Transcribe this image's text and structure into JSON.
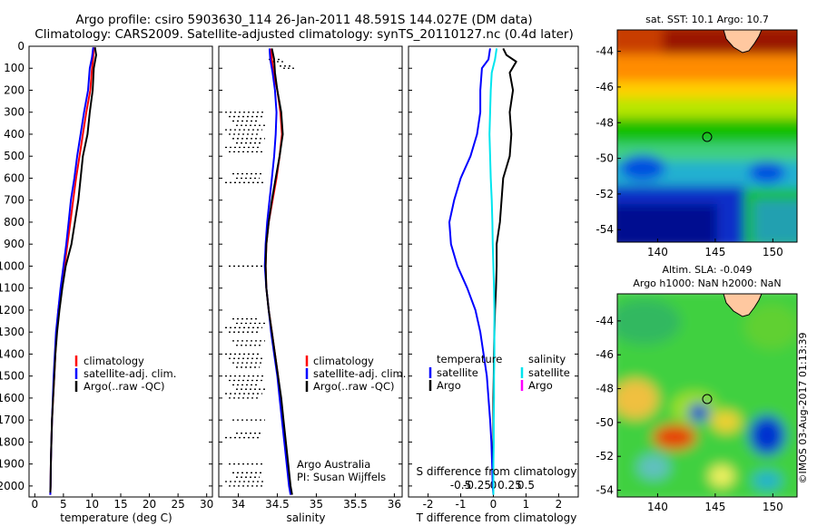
{
  "header": {
    "line1": "Argo profile: csiro 5903630_114 26-Jan-2011 48.591S 144.027E (DM data)",
    "line2": "Climatology: CARS2009. Satellite-adjusted climatology: synTS_20110127.nc (0.4d later)"
  },
  "colors": {
    "climatology": "#ff0000",
    "satellite": "#0000ff",
    "argo": "#000000",
    "salinity_satellite": "#00e5ee",
    "salinity_argo": "#ff00ff"
  },
  "chart_data": [
    {
      "type": "line",
      "panel": "temperature",
      "xlabel": "temperature (deg C)",
      "ylabel": "",
      "xlim": [
        -1,
        31
      ],
      "ylim": [
        2050,
        0
      ],
      "xticks": [
        "0",
        "5",
        "10",
        "15",
        "20",
        "25",
        "30"
      ],
      "yticks": [
        "0",
        "100",
        "200",
        "300",
        "400",
        "500",
        "600",
        "700",
        "800",
        "900",
        "1000",
        "1100",
        "1200",
        "1300",
        "1400",
        "1500",
        "1600",
        "1700",
        "1800",
        "1900",
        "2000"
      ],
      "legend": [
        "climatology",
        "satellite-adj. clim.",
        "Argo(..raw -QC)"
      ],
      "series": [
        {
          "name": "climatology",
          "color": "#ff0000",
          "values": [
            [
              10.3,
              5
            ],
            [
              10.2,
              50
            ],
            [
              10.0,
              100
            ],
            [
              9.7,
              200
            ],
            [
              9.0,
              300
            ],
            [
              8.4,
              400
            ],
            [
              7.8,
              500
            ],
            [
              7.2,
              600
            ],
            [
              6.7,
              700
            ],
            [
              6.2,
              800
            ],
            [
              5.7,
              900
            ],
            [
              5.2,
              1000
            ],
            [
              4.6,
              1100
            ],
            [
              4.1,
              1200
            ],
            [
              3.8,
              1300
            ],
            [
              3.6,
              1400
            ],
            [
              3.4,
              1500
            ],
            [
              3.2,
              1600
            ],
            [
              3.0,
              1700
            ],
            [
              2.9,
              1800
            ],
            [
              2.8,
              1900
            ],
            [
              2.75,
              2000
            ],
            [
              2.7,
              2040
            ]
          ]
        },
        {
          "name": "satellite-adj. clim.",
          "color": "#0000ff",
          "values": [
            [
              10.2,
              5
            ],
            [
              10.0,
              50
            ],
            [
              9.6,
              100
            ],
            [
              9.3,
              200
            ],
            [
              8.6,
              300
            ],
            [
              8.0,
              400
            ],
            [
              7.4,
              500
            ],
            [
              6.9,
              600
            ],
            [
              6.3,
              700
            ],
            [
              5.9,
              800
            ],
            [
              5.5,
              900
            ],
            [
              5.0,
              1000
            ],
            [
              4.5,
              1100
            ],
            [
              4.1,
              1200
            ],
            [
              3.7,
              1300
            ],
            [
              3.5,
              1400
            ],
            [
              3.3,
              1500
            ],
            [
              3.15,
              1600
            ],
            [
              3.0,
              1700
            ],
            [
              2.9,
              1800
            ],
            [
              2.8,
              1900
            ],
            [
              2.75,
              2000
            ],
            [
              2.7,
              2040
            ]
          ]
        },
        {
          "name": "Argo(..raw -QC)",
          "color": "#000000",
          "values": [
            [
              10.5,
              5
            ],
            [
              10.7,
              40
            ],
            [
              10.3,
              100
            ],
            [
              10.1,
              200
            ],
            [
              9.6,
              300
            ],
            [
              9.2,
              400
            ],
            [
              8.4,
              500
            ],
            [
              8.0,
              600
            ],
            [
              7.6,
              700
            ],
            [
              7.0,
              800
            ],
            [
              6.4,
              900
            ],
            [
              5.4,
              1000
            ],
            [
              4.8,
              1100
            ],
            [
              4.3,
              1200
            ],
            [
              3.9,
              1300
            ],
            [
              3.6,
              1400
            ],
            [
              3.4,
              1500
            ],
            [
              3.2,
              1600
            ],
            [
              3.0,
              1700
            ],
            [
              2.9,
              1800
            ],
            [
              2.8,
              1900
            ],
            [
              2.75,
              2000
            ],
            [
              2.7,
              2030
            ]
          ]
        }
      ]
    },
    {
      "type": "line",
      "panel": "salinity",
      "xlabel": "salinity",
      "xlim": [
        33.75,
        36.1
      ],
      "ylim": [
        2050,
        0
      ],
      "xticks": [
        "34",
        "34.5",
        "35",
        "35.5",
        "36"
      ],
      "legend": [
        "climatology",
        "satellite-adj. clim.",
        "Argo(..raw -QC)"
      ],
      "annotation": [
        "Argo Australia",
        "PI: Susan Wijffels"
      ],
      "series": [
        {
          "name": "climatology",
          "color": "#ff0000",
          "values": [
            [
              34.42,
              10
            ],
            [
              34.43,
              60
            ],
            [
              34.45,
              120
            ],
            [
              34.5,
              200
            ],
            [
              34.54,
              300
            ],
            [
              34.56,
              400
            ],
            [
              34.53,
              500
            ],
            [
              34.49,
              600
            ],
            [
              34.44,
              700
            ],
            [
              34.39,
              800
            ],
            [
              34.36,
              900
            ],
            [
              34.35,
              1000
            ],
            [
              34.36,
              1100
            ],
            [
              34.39,
              1200
            ],
            [
              34.43,
              1300
            ],
            [
              34.47,
              1400
            ],
            [
              34.51,
              1500
            ],
            [
              34.54,
              1600
            ],
            [
              34.57,
              1700
            ],
            [
              34.6,
              1800
            ],
            [
              34.63,
              1900
            ],
            [
              34.66,
              2000
            ],
            [
              34.68,
              2040
            ]
          ]
        },
        {
          "name": "satellite-adj. clim.",
          "color": "#0000ff",
          "values": [
            [
              34.4,
              10
            ],
            [
              34.41,
              60
            ],
            [
              34.44,
              120
            ],
            [
              34.47,
              200
            ],
            [
              34.49,
              300
            ],
            [
              34.48,
              400
            ],
            [
              34.46,
              500
            ],
            [
              34.43,
              600
            ],
            [
              34.4,
              700
            ],
            [
              34.37,
              800
            ],
            [
              34.35,
              900
            ],
            [
              34.34,
              1000
            ],
            [
              34.36,
              1100
            ],
            [
              34.39,
              1200
            ],
            [
              34.42,
              1300
            ],
            [
              34.46,
              1400
            ],
            [
              34.5,
              1500
            ],
            [
              34.53,
              1600
            ],
            [
              34.56,
              1700
            ],
            [
              34.59,
              1800
            ],
            [
              34.62,
              1900
            ],
            [
              34.65,
              2000
            ],
            [
              34.67,
              2040
            ]
          ]
        },
        {
          "name": "Argo(..raw -QC)",
          "color": "#000000",
          "values": [
            [
              34.43,
              10
            ],
            [
              34.46,
              60
            ],
            [
              34.47,
              120
            ],
            [
              34.5,
              200
            ],
            [
              34.55,
              300
            ],
            [
              34.57,
              400
            ],
            [
              34.53,
              500
            ],
            [
              34.48,
              600
            ],
            [
              34.43,
              700
            ],
            [
              34.39,
              800
            ],
            [
              34.36,
              900
            ],
            [
              34.35,
              1000
            ],
            [
              34.36,
              1100
            ],
            [
              34.39,
              1200
            ],
            [
              34.43,
              1300
            ],
            [
              34.47,
              1400
            ],
            [
              34.51,
              1500
            ],
            [
              34.55,
              1600
            ],
            [
              34.58,
              1700
            ],
            [
              34.61,
              1800
            ],
            [
              34.64,
              1900
            ],
            [
              34.67,
              2000
            ],
            [
              34.69,
              2040
            ]
          ]
        }
      ]
    },
    {
      "type": "line",
      "panel": "difference",
      "xlabel": "T difference from climatology",
      "xlabel_top": "S difference from climatology",
      "xlim": [
        -2.6,
        2.6
      ],
      "ylim": [
        2050,
        0
      ],
      "xticks": [
        "-2",
        "-1",
        "0",
        "1",
        "2"
      ],
      "xticks_s": [
        "-0.5",
        "-0.25",
        "0",
        "0.25",
        "0.5"
      ],
      "legend_temperature": [
        "temperature",
        "satellite",
        "Argo"
      ],
      "legend_salinity": [
        "salinity",
        "satellite",
        "Argo"
      ],
      "series": [
        {
          "name": "temperature satellite",
          "color": "#0000ff",
          "values": [
            [
              -0.1,
              10
            ],
            [
              -0.15,
              60
            ],
            [
              -0.35,
              100
            ],
            [
              -0.4,
              200
            ],
            [
              -0.4,
              300
            ],
            [
              -0.5,
              400
            ],
            [
              -0.7,
              500
            ],
            [
              -1.0,
              600
            ],
            [
              -1.2,
              700
            ],
            [
              -1.35,
              800
            ],
            [
              -1.3,
              900
            ],
            [
              -1.1,
              1000
            ],
            [
              -0.8,
              1100
            ],
            [
              -0.55,
              1200
            ],
            [
              -0.4,
              1300
            ],
            [
              -0.3,
              1400
            ],
            [
              -0.2,
              1500
            ],
            [
              -0.15,
              1600
            ],
            [
              -0.1,
              1700
            ],
            [
              -0.06,
              1800
            ],
            [
              -0.04,
              1900
            ],
            [
              -0.02,
              2000
            ],
            [
              0,
              2040
            ]
          ]
        },
        {
          "name": "temperature Argo",
          "color": "#000000",
          "values": [
            [
              0.3,
              10
            ],
            [
              0.4,
              40
            ],
            [
              0.7,
              70
            ],
            [
              0.5,
              120
            ],
            [
              0.6,
              200
            ],
            [
              0.5,
              300
            ],
            [
              0.55,
              400
            ],
            [
              0.5,
              500
            ],
            [
              0.3,
              600
            ],
            [
              0.25,
              700
            ],
            [
              0.2,
              800
            ],
            [
              0.1,
              900
            ],
            [
              0.1,
              1000
            ],
            [
              0.08,
              1100
            ],
            [
              0.05,
              1200
            ],
            [
              0.03,
              1300
            ],
            [
              0.02,
              1400
            ],
            [
              0.01,
              1500
            ],
            [
              0,
              1600
            ],
            [
              0,
              1700
            ],
            [
              0,
              1800
            ],
            [
              0,
              1900
            ],
            [
              0,
              2000
            ],
            [
              0,
              2030
            ]
          ]
        },
        {
          "name": "salinity satellite",
          "color": "#00e5ee",
          "values": [
            [
              0.1,
              10
            ],
            [
              0.05,
              60
            ],
            [
              -0.05,
              120
            ],
            [
              -0.08,
              200
            ],
            [
              -0.1,
              300
            ],
            [
              -0.12,
              400
            ],
            [
              -0.1,
              500
            ],
            [
              -0.08,
              600
            ],
            [
              -0.05,
              700
            ],
            [
              -0.03,
              800
            ],
            [
              -0.02,
              900
            ],
            [
              0,
              1000
            ],
            [
              0.02,
              1100
            ],
            [
              0.03,
              1200
            ],
            [
              0.03,
              1300
            ],
            [
              0.03,
              1400
            ],
            [
              0.02,
              1500
            ],
            [
              0.02,
              1600
            ],
            [
              0.01,
              1700
            ],
            [
              0.01,
              1800
            ],
            [
              0,
              1900
            ],
            [
              0,
              2000
            ],
            [
              0,
              2040
            ]
          ]
        }
      ]
    }
  ],
  "maps": {
    "sst": {
      "title": "sat. SST: 10.1  Argo: 10.7",
      "yticks": [
        "-44",
        "-46",
        "-48",
        "-50",
        "-52",
        "-54"
      ],
      "xticks": [
        "140",
        "145",
        "150"
      ]
    },
    "sla": {
      "title1": "Altim. SLA: -0.049",
      "title2": "Argo h1000: NaN h2000: NaN",
      "yticks": [
        "-44",
        "-46",
        "-48",
        "-50",
        "-52",
        "-54"
      ],
      "xticks": [
        "140",
        "145",
        "150"
      ]
    },
    "credit": "©IMOS 03-Aug-2017 01:13:39"
  }
}
